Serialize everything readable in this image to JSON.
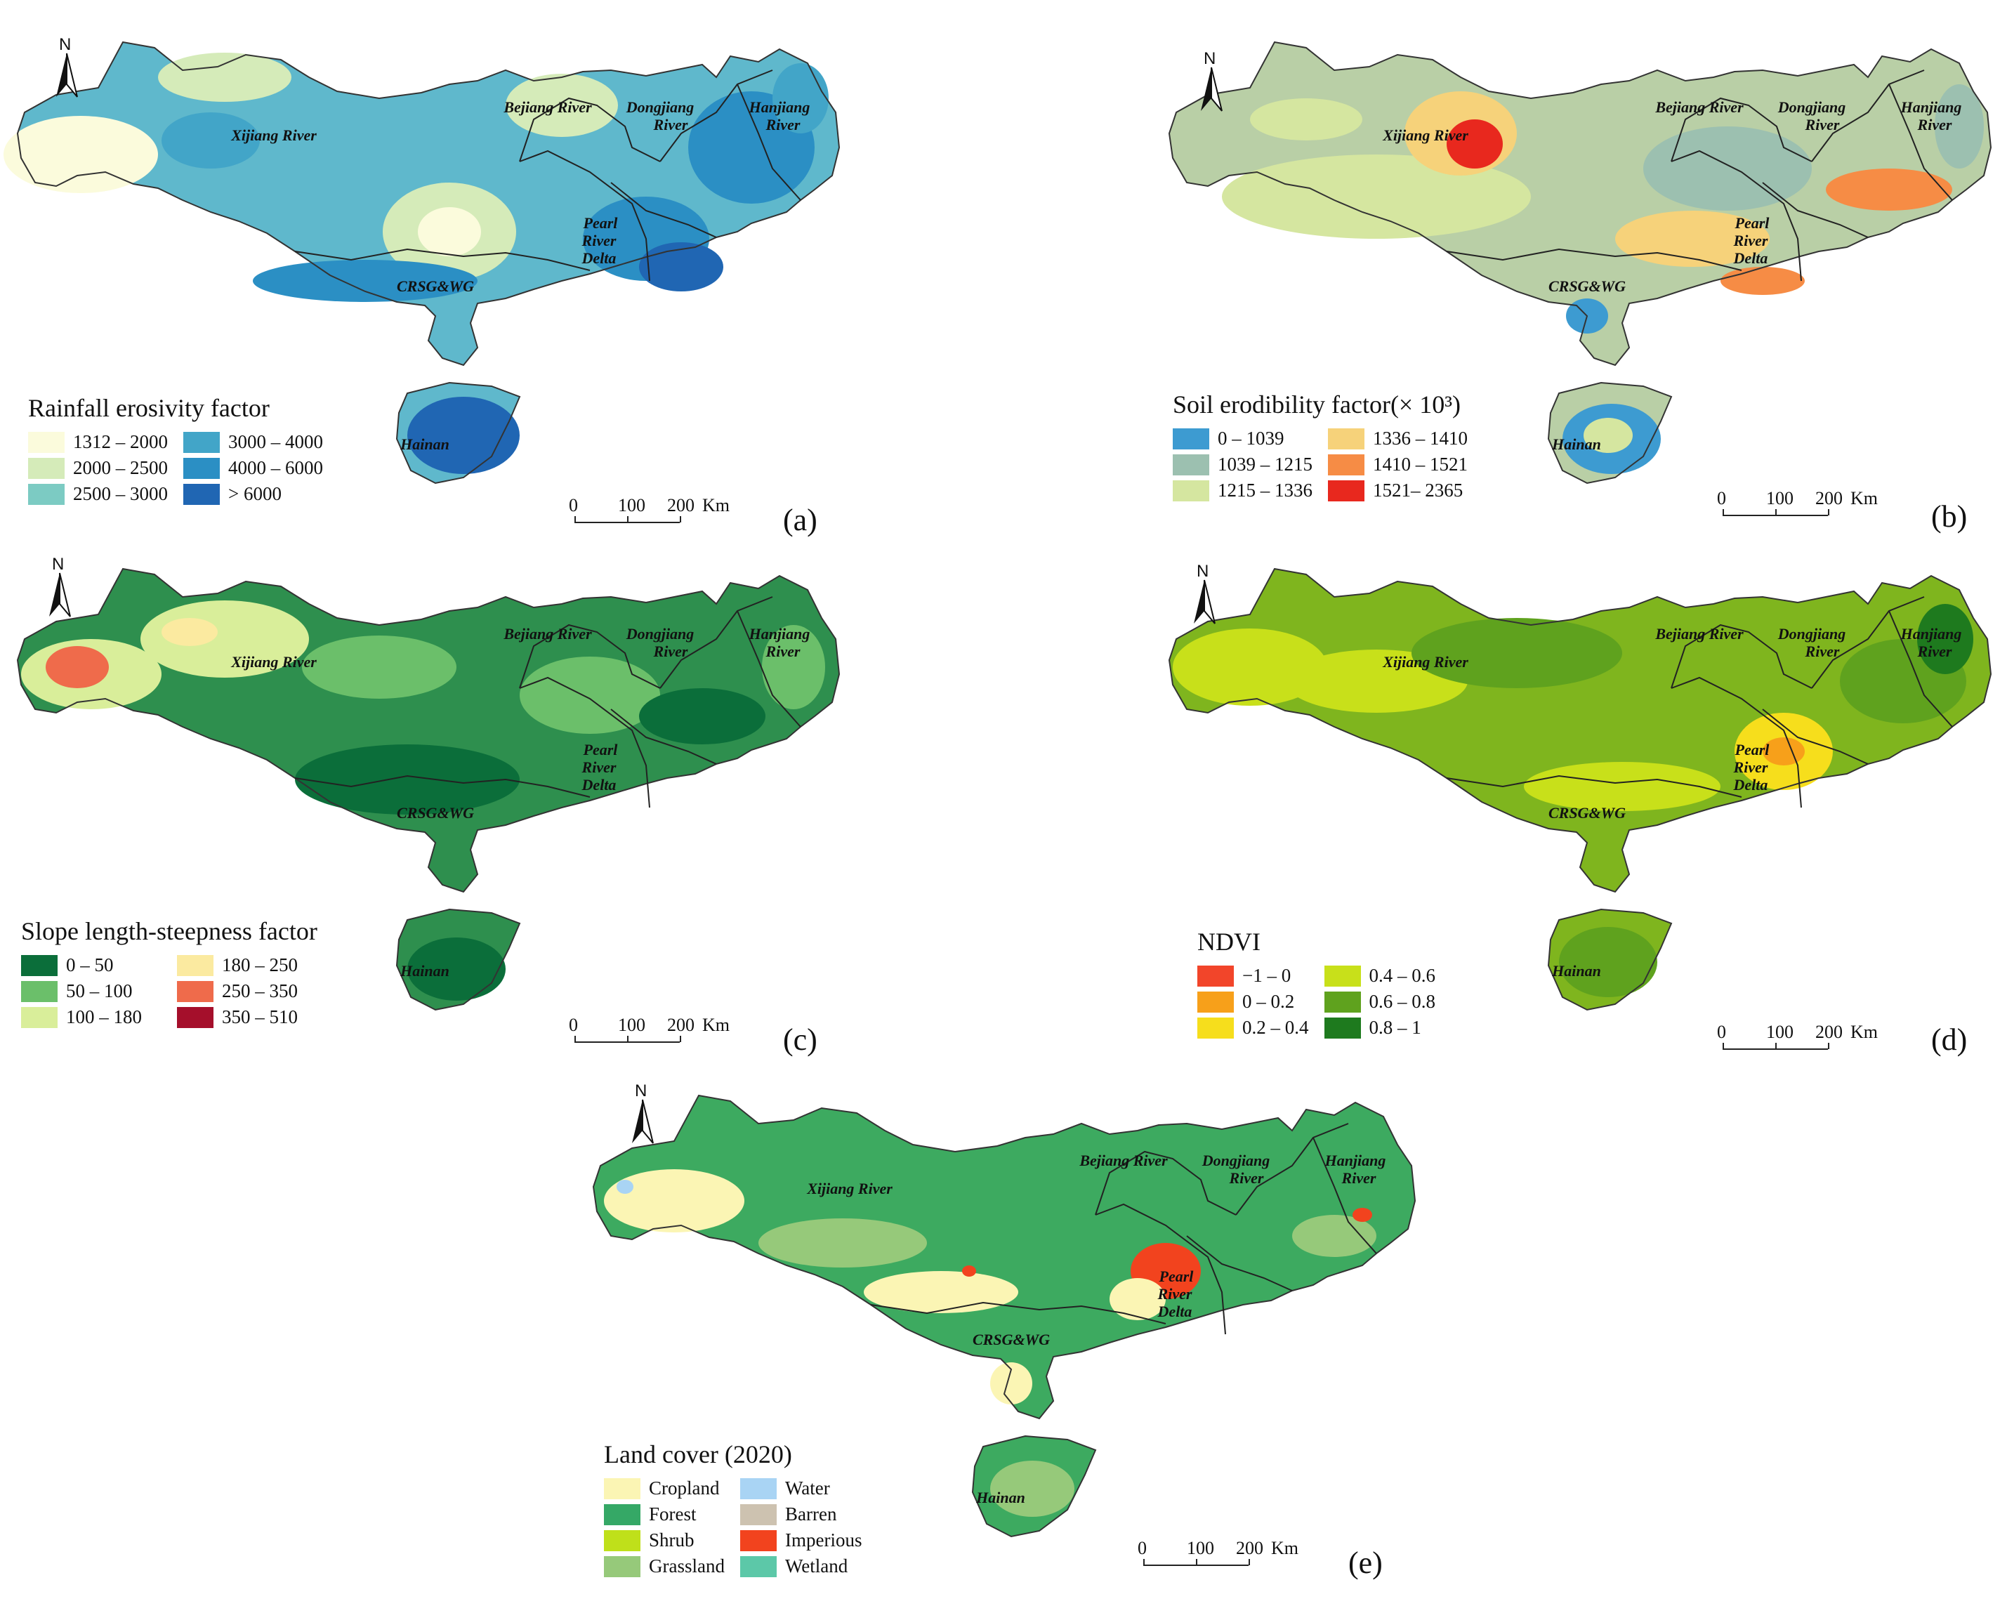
{
  "north_label": "N",
  "river_labels": {
    "xijiang": "Xijiang River",
    "bejiang": "Bejiang River",
    "dongjiang_1": "Dongjiang",
    "dongjiang_2": "River",
    "hanjiang_1": "Hanjiang",
    "hanjiang_2": "River",
    "prd_1": "Pearl",
    "prd_2": "River",
    "prd_3": "Delta",
    "crsg": "CRSG&WG",
    "hainan": "Hainan"
  },
  "scalebar": {
    "t0": "0",
    "t1": "100",
    "t2": "200",
    "unit": "Km"
  },
  "panels": [
    {
      "id": "a",
      "label": "(a)",
      "legend_title": "Rainfall erosivity factor",
      "base_color": "#5fb8cc",
      "legend": [
        {
          "label": "1312 – 2000",
          "color": "#fbfbdc"
        },
        {
          "label": "3000 – 4000",
          "color": "#42a5c8"
        },
        {
          "label": "2000 – 2500",
          "color": "#d5ebb9"
        },
        {
          "label": "4000 – 6000",
          "color": "#2b8fc4"
        },
        {
          "label": "2500 – 3000",
          "color": "#7ccbc3"
        },
        {
          "label": "> 6000",
          "color": "#2066b3"
        }
      ]
    },
    {
      "id": "b",
      "label": "(b)",
      "legend_title": "Soil erodibility factor(× 10³)",
      "base_color": "#b9cfa6",
      "legend": [
        {
          "label": "0 – 1039",
          "color": "#3d9bd1"
        },
        {
          "label": "1336 – 1410",
          "color": "#f6d27a"
        },
        {
          "label": "1039 – 1215",
          "color": "#9cc0b0"
        },
        {
          "label": "1410 – 1521",
          "color": "#f68c45"
        },
        {
          "label": "1215 – 1336",
          "color": "#d5e6a0"
        },
        {
          "label": "1521– 2365",
          "color": "#e8281e"
        }
      ]
    },
    {
      "id": "c",
      "label": "(c)",
      "legend_title": "Slope length-steepness factor",
      "base_color": "#2e8f4e",
      "legend": [
        {
          "label": "0 – 50",
          "color": "#0b6e3a"
        },
        {
          "label": "180 – 250",
          "color": "#fbeaa0"
        },
        {
          "label": "50 – 100",
          "color": "#6bbf6a"
        },
        {
          "label": "250 – 350",
          "color": "#ef6b4b"
        },
        {
          "label": "100 – 180",
          "color": "#d9ee9a"
        },
        {
          "label": "350 – 510",
          "color": "#a50f2b"
        }
      ]
    },
    {
      "id": "d",
      "label": "(d)",
      "legend_title": "NDVI",
      "base_color": "#7fb51e",
      "legend": [
        {
          "label": "−1 – 0",
          "color": "#f2452a"
        },
        {
          "label": "0.4 – 0.6",
          "color": "#c8e01a"
        },
        {
          "label": "0 – 0.2",
          "color": "#f7a01a"
        },
        {
          "label": "0.6 – 0.8",
          "color": "#5fa21e"
        },
        {
          "label": "0.2 – 0.4",
          "color": "#f6de1c"
        },
        {
          "label": "0.8 – 1",
          "color": "#1e7a1e"
        }
      ]
    },
    {
      "id": "e",
      "label": "(e)",
      "legend_title": "Land cover (2020)",
      "base_color": "#3daa60",
      "legend": [
        {
          "label": "Cropland",
          "color": "#fbf5b4"
        },
        {
          "label": "Water",
          "color": "#a9d4f4"
        },
        {
          "label": "Forest",
          "color": "#35a866"
        },
        {
          "label": "Barren",
          "color": "#cdc2b0"
        },
        {
          "label": "Shrub",
          "color": "#bfe01a"
        },
        {
          "label": "Imperious",
          "color": "#f2431e"
        },
        {
          "label": "Grassland",
          "color": "#96c97a"
        },
        {
          "label": "Wetland",
          "color": "#5cc8a8"
        }
      ]
    }
  ]
}
